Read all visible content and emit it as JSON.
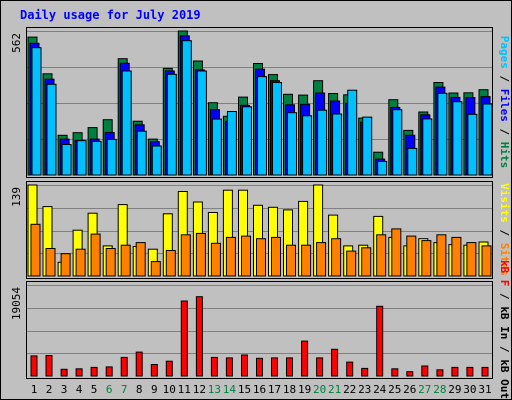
{
  "chart_data": [
    {
      "type": "bar",
      "title": "Daily usage for July 2019",
      "categories": [
        "1",
        "2",
        "3",
        "4",
        "5",
        "6",
        "7",
        "8",
        "9",
        "10",
        "11",
        "12",
        "13",
        "14",
        "15",
        "16",
        "17",
        "18",
        "19",
        "20",
        "21",
        "22",
        "23",
        "24",
        "25",
        "26",
        "27",
        "28",
        "29",
        "30",
        "31"
      ],
      "weekend_days": [
        "6",
        "7",
        "13",
        "14",
        "20",
        "21",
        "27",
        "28"
      ],
      "ylim": [
        0,
        562
      ],
      "max_tick_label": "562",
      "grid": true,
      "legend": {
        "items": [
          "Pages",
          "Files",
          "Hits"
        ],
        "separator": " / ",
        "placement": "right"
      },
      "series": [
        {
          "name": "Hits",
          "color": "#008040",
          "values": [
            538,
            395,
            155,
            165,
            185,
            216,
            454,
            210,
            140,
            416,
            562,
            445,
            282,
            229,
            304,
            435,
            392,
            315,
            312,
            368,
            318,
            313,
            222,
            89,
            294,
            174,
            246,
            361,
            320,
            321,
            333
          ]
        },
        {
          "name": "Files",
          "color": "#0000ff",
          "values": [
            514,
            374,
            140,
            135,
            140,
            166,
            436,
            196,
            130,
            406,
            543,
            410,
            255,
            210,
            272,
            413,
            368,
            274,
            276,
            320,
            289,
            280,
            206,
            62,
            264,
            155,
            235,
            343,
            303,
            302,
            306
          ]
        },
        {
          "name": "Pages",
          "color": "#00c0ff",
          "values": [
            497,
            354,
            119,
            134,
            131,
            139,
            406,
            171,
            113,
            393,
            524,
            406,
            218,
            248,
            266,
            384,
            361,
            243,
            231,
            253,
            238,
            331,
            226,
            53,
            255,
            104,
            219,
            319,
            286,
            237,
            277
          ]
        }
      ]
    },
    {
      "type": "bar",
      "ylim": [
        0,
        139
      ],
      "max_tick_label": "139",
      "grid": true,
      "legend": {
        "items": [
          "Visits",
          "Sites"
        ],
        "separator": " / ",
        "placement": "right"
      },
      "series": [
        {
          "name": "Visits",
          "color": "#ffff00",
          "values": [
            139,
            106,
            21,
            70,
            96,
            46,
            109,
            45,
            41,
            95,
            129,
            113,
            97,
            131,
            131,
            108,
            105,
            101,
            114,
            139,
            93,
            46,
            47,
            91,
            59,
            46,
            57,
            51,
            48,
            47,
            52
          ]
        },
        {
          "name": "Sites",
          "color": "#ff8000",
          "values": [
            79,
            42,
            34,
            41,
            64,
            42,
            47,
            51,
            22,
            39,
            63,
            65,
            50,
            59,
            61,
            57,
            59,
            47,
            47,
            51,
            57,
            38,
            43,
            63,
            72,
            61,
            54,
            63,
            59,
            51,
            46
          ]
        }
      ]
    },
    {
      "type": "bar",
      "ylim": [
        0,
        19054
      ],
      "max_tick_label": "19054",
      "grid": true,
      "legend": {
        "items": [
          "kB F",
          "kB In",
          "kB Out"
        ],
        "separator": " / ",
        "placement": "right"
      },
      "series": [
        {
          "name": "kB F",
          "color": "#ff0000",
          "values": [
            4200,
            4300,
            1400,
            1500,
            1800,
            1900,
            3900,
            5000,
            2400,
            3100,
            15700,
            16600,
            3900,
            3800,
            4400,
            3700,
            3800,
            3800,
            7300,
            3800,
            5600,
            2900,
            1600,
            14600,
            1500,
            900,
            2100,
            1300,
            1800,
            1800,
            1800
          ]
        }
      ]
    }
  ]
}
